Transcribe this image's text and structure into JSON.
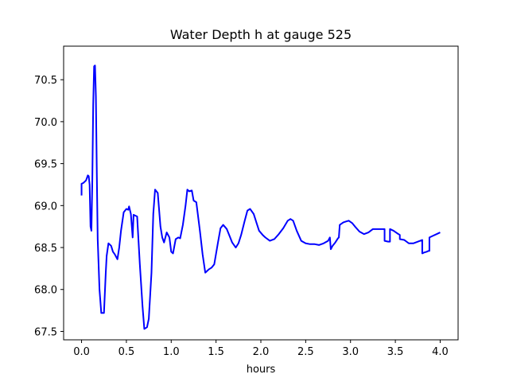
{
  "chart_data": {
    "type": "line",
    "title": "Water Depth h at gauge 525",
    "xlabel": "hours",
    "ylabel": "",
    "xlim": [
      -0.2,
      4.2
    ],
    "ylim": [
      67.4,
      70.9
    ],
    "xticks": [
      0.0,
      0.5,
      1.0,
      1.5,
      2.0,
      2.5,
      3.0,
      3.5,
      4.0
    ],
    "xtick_labels": [
      "0.0",
      "0.5",
      "1.0",
      "1.5",
      "2.0",
      "2.5",
      "3.0",
      "3.5",
      "4.0"
    ],
    "yticks": [
      67.5,
      68.0,
      68.5,
      69.0,
      69.5,
      70.0,
      70.5
    ],
    "ytick_labels": [
      "67.5",
      "68.0",
      "68.5",
      "69.0",
      "69.5",
      "70.0",
      "70.5"
    ],
    "grid": false,
    "series": [
      {
        "color": "#0000ff",
        "x": [
          0.0,
          0.0,
          0.02,
          0.05,
          0.07,
          0.08,
          0.09,
          0.1,
          0.11,
          0.12,
          0.13,
          0.14,
          0.15,
          0.16,
          0.17,
          0.18,
          0.2,
          0.22,
          0.25,
          0.27,
          0.28,
          0.3,
          0.33,
          0.35,
          0.37,
          0.4,
          0.42,
          0.44,
          0.47,
          0.5,
          0.52,
          0.53,
          0.55,
          0.57,
          0.58,
          0.6,
          0.62,
          0.65,
          0.68,
          0.7,
          0.73,
          0.75,
          0.78,
          0.8,
          0.82,
          0.85,
          0.88,
          0.9,
          0.92,
          0.95,
          0.98,
          1.0,
          1.02,
          1.05,
          1.08,
          1.1,
          1.13,
          1.16,
          1.18,
          1.2,
          1.23,
          1.25,
          1.28,
          1.32,
          1.35,
          1.38,
          1.42,
          1.45,
          1.48,
          1.52,
          1.55,
          1.58,
          1.62,
          1.65,
          1.68,
          1.72,
          1.75,
          1.78,
          1.82,
          1.85,
          1.88,
          1.92,
          1.95,
          1.98,
          2.02,
          2.05,
          2.1,
          2.15,
          2.2,
          2.25,
          2.3,
          2.33,
          2.36,
          2.4,
          2.45,
          2.5,
          2.55,
          2.6,
          2.65,
          2.7,
          2.75,
          2.77,
          2.78,
          2.8,
          2.83,
          2.86,
          2.87,
          2.88,
          2.92,
          2.95,
          2.98,
          3.02,
          3.05,
          3.1,
          3.15,
          3.2,
          3.25,
          3.3,
          3.35,
          3.38,
          3.38,
          3.42,
          3.44,
          3.44,
          3.48,
          3.52,
          3.55,
          3.55,
          3.6,
          3.65,
          3.7,
          3.75,
          3.8,
          3.8,
          3.82,
          3.85,
          3.87,
          3.88,
          3.88,
          3.92,
          3.96,
          4.0
        ],
        "y": [
          69.12,
          69.26,
          69.27,
          69.3,
          69.36,
          69.35,
          69.25,
          68.75,
          68.7,
          69.3,
          70.2,
          70.66,
          70.67,
          70.3,
          69.4,
          68.6,
          68.0,
          67.72,
          67.72,
          68.2,
          68.4,
          68.55,
          68.52,
          68.45,
          68.42,
          68.36,
          68.5,
          68.7,
          68.92,
          68.96,
          68.95,
          68.99,
          68.9,
          68.62,
          68.89,
          68.88,
          68.87,
          68.3,
          67.8,
          67.53,
          67.55,
          67.65,
          68.2,
          68.9,
          69.19,
          69.15,
          68.75,
          68.62,
          68.56,
          68.68,
          68.62,
          68.45,
          68.43,
          68.6,
          68.62,
          68.61,
          68.77,
          69.0,
          69.19,
          69.17,
          69.18,
          69.06,
          69.04,
          68.7,
          68.42,
          68.2,
          68.24,
          68.26,
          68.3,
          68.55,
          68.73,
          68.77,
          68.72,
          68.64,
          68.56,
          68.5,
          68.55,
          68.65,
          68.82,
          68.94,
          68.96,
          68.9,
          68.8,
          68.7,
          68.65,
          68.62,
          68.58,
          68.6,
          68.66,
          68.73,
          68.82,
          68.84,
          68.82,
          68.7,
          68.58,
          68.55,
          68.54,
          68.54,
          68.53,
          68.55,
          68.58,
          68.62,
          68.48,
          68.52,
          68.56,
          68.61,
          68.62,
          68.77,
          68.8,
          68.81,
          68.82,
          68.79,
          68.75,
          68.69,
          68.66,
          68.68,
          68.72,
          68.72,
          68.72,
          68.72,
          68.58,
          68.57,
          68.57,
          68.72,
          68.7,
          68.67,
          68.65,
          68.6,
          68.59,
          68.55,
          68.55,
          68.57,
          68.59,
          68.43,
          68.44,
          68.45,
          68.46,
          68.46,
          68.62,
          68.64,
          68.66,
          68.68
        ]
      }
    ]
  }
}
